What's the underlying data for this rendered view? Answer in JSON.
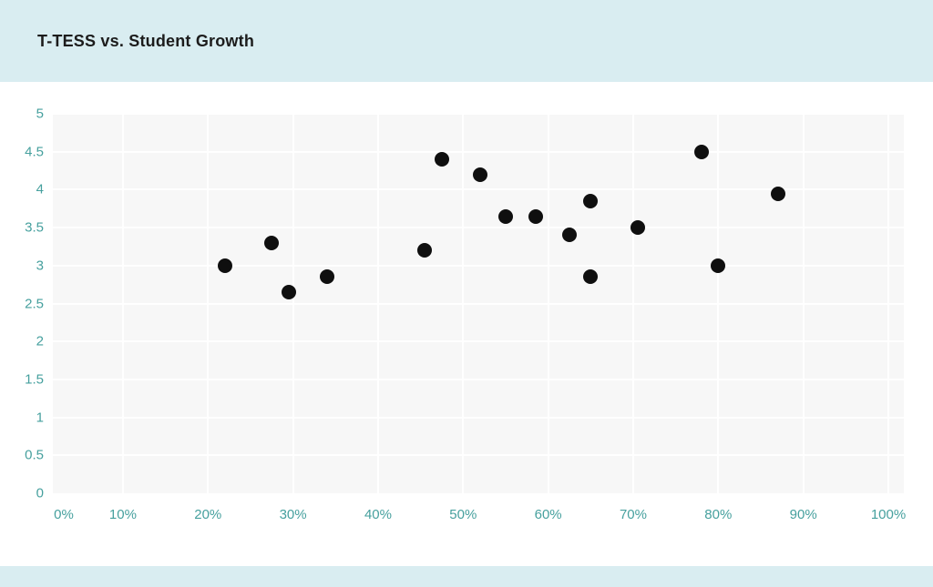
{
  "header": {
    "title": "T-TESS vs. Student Growth"
  },
  "colors": {
    "page_bg": "#ffffff",
    "header_bg": "#d9edf1",
    "footer_bg": "#d9edf1",
    "title_text": "#1c1c1c",
    "axis_label": "#46a09e",
    "plot_bg": "#f7f7f7",
    "gridline": "#ffffff",
    "point": "#0f0f0f"
  },
  "chart_data": {
    "type": "scatter",
    "title": "T-TESS vs. Student Growth",
    "xlabel": "",
    "ylabel": "",
    "xlim": [
      0,
      100
    ],
    "ylim": [
      0,
      5
    ],
    "x_ticks": [
      0,
      10,
      20,
      30,
      40,
      50,
      60,
      70,
      80,
      90,
      100
    ],
    "x_tick_labels": [
      "0%",
      "10%",
      "20%",
      "30%",
      "40%",
      "50%",
      "60%",
      "70%",
      "80%",
      "90%",
      "100%"
    ],
    "y_ticks": [
      0,
      0.5,
      1,
      1.5,
      2,
      2.5,
      3,
      3.5,
      4,
      4.5,
      5
    ],
    "y_tick_labels": [
      "0",
      "0.5",
      "1",
      "1.5",
      "2",
      "2.5",
      "3",
      "3.5",
      "4",
      "4.5",
      "5"
    ],
    "grid": true,
    "legend": "none",
    "point_color": "#0f0f0f",
    "points": [
      {
        "x": 22,
        "y": 3.0
      },
      {
        "x": 27.5,
        "y": 3.3
      },
      {
        "x": 29.5,
        "y": 2.65
      },
      {
        "x": 34,
        "y": 2.85
      },
      {
        "x": 45.5,
        "y": 3.2
      },
      {
        "x": 47.5,
        "y": 4.4
      },
      {
        "x": 52,
        "y": 4.2
      },
      {
        "x": 55,
        "y": 3.65
      },
      {
        "x": 58.5,
        "y": 3.65
      },
      {
        "x": 62.5,
        "y": 3.4
      },
      {
        "x": 65,
        "y": 3.85
      },
      {
        "x": 65,
        "y": 2.85
      },
      {
        "x": 70.5,
        "y": 3.5
      },
      {
        "x": 78,
        "y": 4.5
      },
      {
        "x": 80,
        "y": 3.0
      },
      {
        "x": 87,
        "y": 3.95
      }
    ]
  }
}
